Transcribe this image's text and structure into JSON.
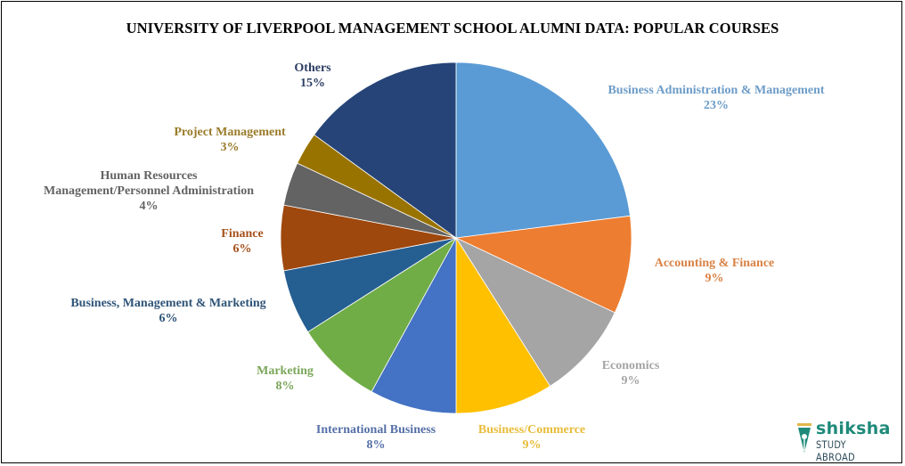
{
  "chart_data": {
    "type": "pie",
    "title": "UNIVERSITY OF LIVERPOOL MANAGEMENT SCHOOL ALUMNI DATA: POPULAR COURSES",
    "start_angle": "12 o'clock",
    "direction": "clockwise",
    "slices": [
      {
        "label": "Business Administration & Management",
        "value": 23,
        "display": "23%",
        "color": "#5B9BD5",
        "label_color": "#6D9CC8"
      },
      {
        "label": "Accounting & Finance",
        "value": 9,
        "display": "9%",
        "color": "#ED7D31",
        "label_color": "#D98244"
      },
      {
        "label": "Economics",
        "value": 9,
        "display": "9%",
        "color": "#A5A5A5",
        "label_color": "#A5A5A5"
      },
      {
        "label": "Business/Commerce",
        "value": 9,
        "display": "9%",
        "color": "#FFC000",
        "label_color": "#E8BC3A"
      },
      {
        "label": "International Business",
        "value": 8,
        "display": "8%",
        "color": "#4472C4",
        "label_color": "#5570A8"
      },
      {
        "label": "Marketing",
        "value": 8,
        "display": "8%",
        "color": "#70AD47",
        "label_color": "#7BA65A"
      },
      {
        "label": "Business, Management & Marketing",
        "value": 6,
        "display": "6%",
        "color": "#255E91",
        "label_color": "#2F5478"
      },
      {
        "label": "Finance",
        "value": 6,
        "display": "6%",
        "color": "#9E480E",
        "label_color": "#A6511C"
      },
      {
        "label": "Human Resources Management/Personnel Administration",
        "value": 4,
        "display": "4%",
        "color": "#636363",
        "label_color": "#636363"
      },
      {
        "label": "Project Management",
        "value": 3,
        "display": "3%",
        "color": "#997300",
        "label_color": "#9A7B2A"
      },
      {
        "label": "Others",
        "value": 15,
        "display": "15%",
        "color": "#264478",
        "label_color": "#2C3E63"
      }
    ],
    "legend": "none (data labels outside slices)"
  },
  "labels": {
    "bam": {
      "line1": "Business Administration  & Management",
      "pct": "23%"
    },
    "acc": {
      "line1": "Accounting  & Finance",
      "pct": "9%"
    },
    "eco": {
      "line1": "Economics",
      "pct": "9%"
    },
    "bc": {
      "line1": "Business/Commerce",
      "pct": "9%"
    },
    "ib": {
      "line1": "International  Business",
      "pct": "8%"
    },
    "mkt": {
      "line1": "Marketing",
      "pct": "8%"
    },
    "bmm": {
      "line1": "Business, Management & Marketing",
      "pct": "6%"
    },
    "fin": {
      "line1": "Finance",
      "pct": "6%"
    },
    "hr": {
      "line1": "Human  Resources",
      "line2": "Management/Personnel  Administration",
      "pct": "4%"
    },
    "pm": {
      "line1": "Project  Management",
      "pct": "3%"
    },
    "oth": {
      "line1": "Others",
      "pct": "15%"
    }
  },
  "logo": {
    "brand": "shiksha",
    "sub": "STUDY ABROAD"
  }
}
